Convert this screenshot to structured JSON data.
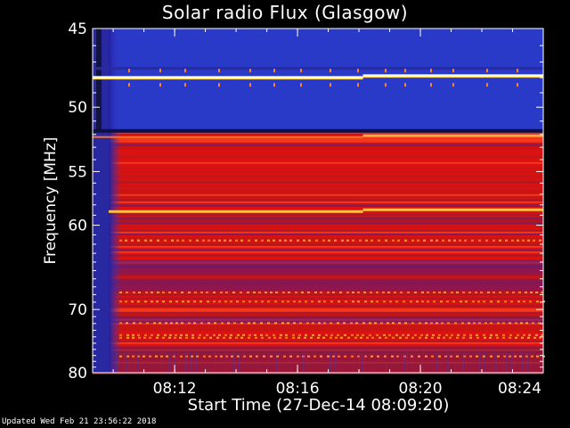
{
  "chart_data": {
    "type": "heatmap",
    "title": "Solar radio Flux (Glasgow)",
    "xlabel": "Start Time (27-Dec-14 08:09:20)",
    "ylabel": "Frequency [MHz]",
    "x_ticks": [
      "08:12",
      "08:16",
      "08:20",
      "08:24"
    ],
    "x_tick_minutes": [
      2.67,
      6.67,
      10.67,
      14.67
    ],
    "xlim_minutes": [
      0,
      14.67
    ],
    "y_ticks": [
      45,
      50,
      55,
      60,
      70,
      80
    ],
    "ylim": [
      45,
      80
    ],
    "y_scale": "reciprocal",
    "colormap": [
      "#1a1a5a",
      "#2a3ac8",
      "#5a5ae8",
      "#c03030",
      "#e01818",
      "#ff5a1a",
      "#ffd040",
      "#fffff0"
    ],
    "bright_lines_mhz": [
      48,
      52.2,
      58.6
    ],
    "background_band_mhz": [
      45,
      51.8
    ],
    "updated": "Updated Wed Feb 21 23:56:22 2018"
  }
}
